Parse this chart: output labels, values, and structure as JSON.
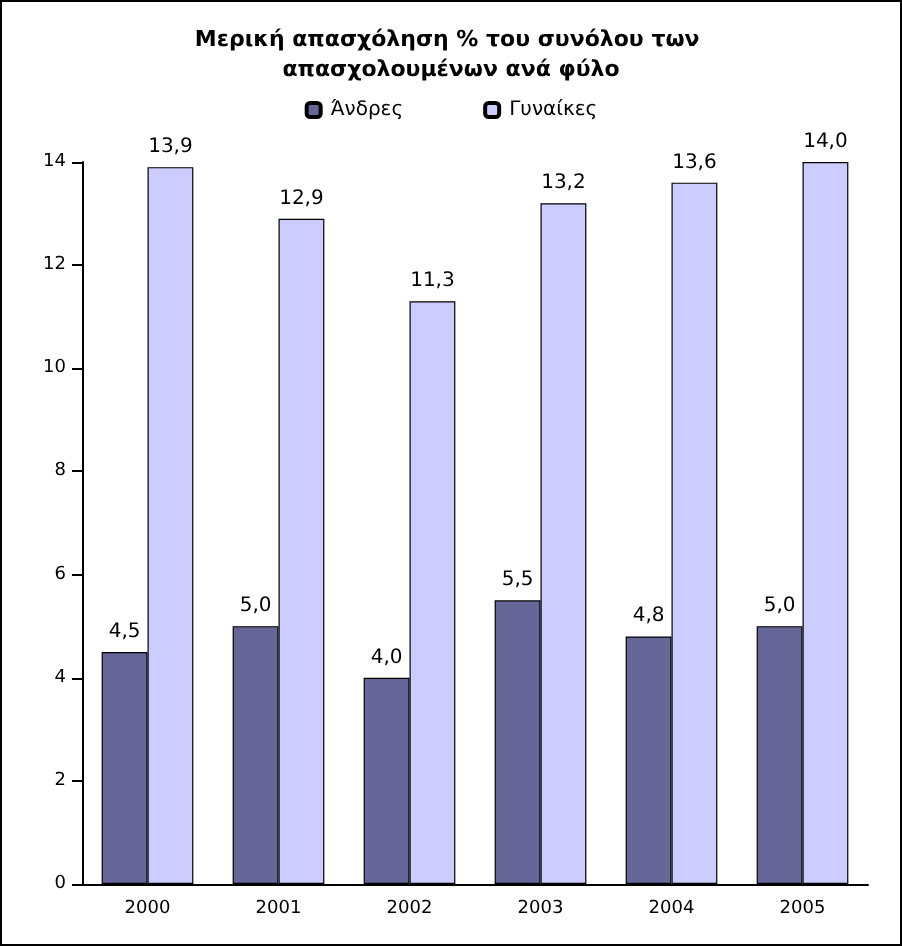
{
  "chart_data": {
    "type": "bar",
    "title": "Μερική απασχόληση % του συνόλου των απασχολουμένων ανά φύλο",
    "categories": [
      "2000",
      "2001",
      "2002",
      "2003",
      "2004",
      "2005"
    ],
    "series": [
      {
        "name": "Άνδρες",
        "color": "#666699",
        "values": [
          4.5,
          5.0,
          4.0,
          5.5,
          4.8,
          5.0
        ],
        "value_labels": [
          "4,5",
          "5,0",
          "4,0",
          "5,5",
          "4,8",
          "5,0"
        ]
      },
      {
        "name": "Γυναίκες",
        "color": "#ccccff",
        "values": [
          13.9,
          12.9,
          11.3,
          13.2,
          13.6,
          14.0
        ],
        "value_labels": [
          "13,9",
          "12,9",
          "11,3",
          "13,2",
          "13,6",
          "14,0"
        ]
      }
    ],
    "ylim": [
      0,
      14
    ],
    "yticks": [
      0,
      2,
      4,
      6,
      8,
      10,
      12,
      14
    ],
    "grid": false,
    "legend": "top"
  }
}
